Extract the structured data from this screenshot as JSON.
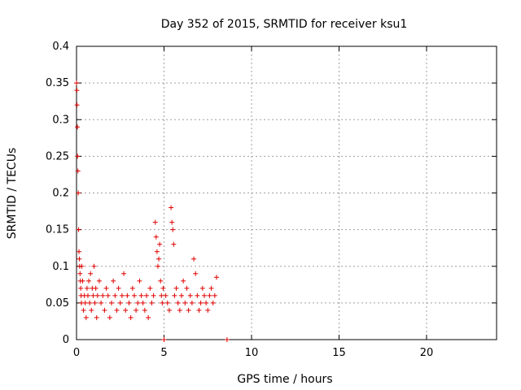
{
  "chart_data": {
    "type": "scatter",
    "title": "Day 352 of 2015, SRMTID for receiver ksu1",
    "xlabel": "GPS time / hours",
    "ylabel": "SRMTID / TECUs",
    "xlim": [
      0,
      24
    ],
    "ylim": [
      0,
      0.4
    ],
    "xticks": [
      "0",
      "5",
      "10",
      "15",
      "20"
    ],
    "yticks": [
      "0",
      "0.05",
      "0.1",
      "0.15",
      "0.2",
      "0.25",
      "0.3",
      "0.35",
      "0.4"
    ],
    "grid": true,
    "marker": "+",
    "color": "#e00000",
    "series": [
      {
        "x": [
          0.0,
          0.02,
          0.03,
          0.05,
          0.06,
          0.08,
          0.1,
          0.12,
          0.14,
          0.16,
          0.18,
          0.2,
          0.22,
          0.24,
          0.26,
          0.28,
          0.3,
          0.35,
          0.4,
          0.45,
          0.5,
          0.55,
          0.6,
          0.65,
          0.7,
          0.75,
          0.8,
          0.85,
          0.9,
          0.95,
          1.0,
          1.05,
          1.1,
          1.15,
          1.2,
          1.3,
          1.4,
          1.5,
          1.6,
          1.7,
          1.8,
          1.9,
          2.0,
          2.1,
          2.2,
          2.3,
          2.4,
          2.5,
          2.6,
          2.7,
          2.8,
          2.9,
          3.0,
          3.1,
          3.2,
          3.3,
          3.4,
          3.5,
          3.6,
          3.7,
          3.8,
          3.9,
          4.0,
          4.1,
          4.2,
          4.3,
          4.4,
          4.5,
          4.55,
          4.6,
          4.65,
          4.7,
          4.75,
          4.8,
          4.85,
          4.9,
          4.95,
          5.0,
          5.1,
          5.2,
          5.3,
          5.4,
          5.45,
          5.5,
          5.55,
          5.6,
          5.7,
          5.8,
          5.9,
          6.0,
          6.1,
          6.2,
          6.3,
          6.4,
          6.5,
          6.6,
          6.7,
          6.8,
          6.9,
          7.0,
          7.1,
          7.2,
          7.3,
          7.4,
          7.5,
          7.6,
          7.7,
          7.8,
          7.9,
          8.0,
          8.6
        ],
        "y": [
          0.35,
          0.34,
          0.32,
          0.29,
          0.25,
          0.23,
          0.2,
          0.15,
          0.12,
          0.11,
          0.1,
          0.09,
          0.08,
          0.07,
          0.06,
          0.05,
          0.1,
          0.08,
          0.04,
          0.06,
          0.05,
          0.03,
          0.07,
          0.06,
          0.08,
          0.05,
          0.09,
          0.04,
          0.07,
          0.06,
          0.1,
          0.05,
          0.07,
          0.03,
          0.06,
          0.08,
          0.05,
          0.06,
          0.04,
          0.07,
          0.06,
          0.03,
          0.05,
          0.08,
          0.06,
          0.04,
          0.07,
          0.05,
          0.06,
          0.09,
          0.04,
          0.06,
          0.05,
          0.03,
          0.07,
          0.06,
          0.04,
          0.05,
          0.08,
          0.06,
          0.05,
          0.04,
          0.06,
          0.03,
          0.07,
          0.05,
          0.06,
          0.16,
          0.14,
          0.12,
          0.1,
          0.11,
          0.13,
          0.08,
          0.06,
          0.05,
          0.07,
          0.0,
          0.06,
          0.05,
          0.04,
          0.18,
          0.16,
          0.15,
          0.13,
          0.06,
          0.07,
          0.05,
          0.04,
          0.06,
          0.08,
          0.05,
          0.07,
          0.04,
          0.06,
          0.05,
          0.11,
          0.09,
          0.06,
          0.04,
          0.05,
          0.07,
          0.06,
          0.05,
          0.04,
          0.06,
          0.07,
          0.05,
          0.06,
          0.085,
          0.0
        ]
      }
    ]
  }
}
